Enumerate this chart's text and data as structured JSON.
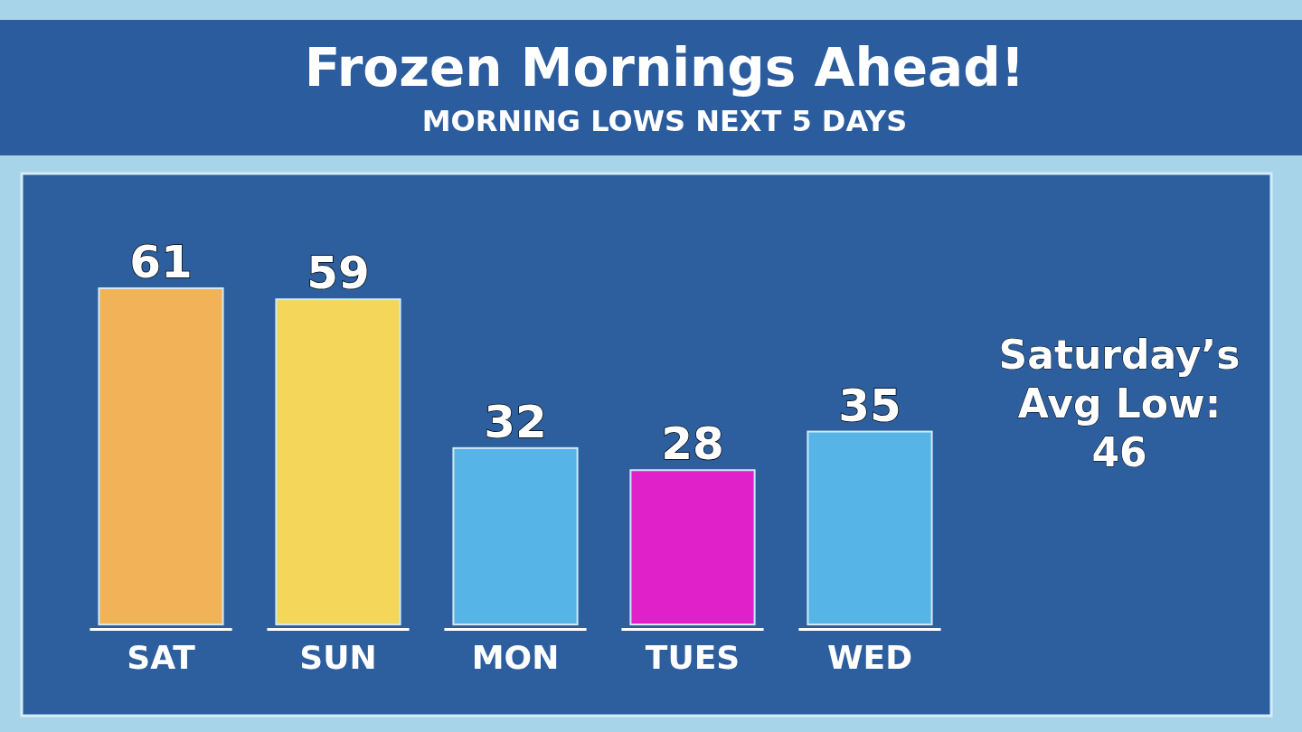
{
  "chart_data": {
    "type": "bar",
    "title": "Frozen Mornings Ahead!",
    "subtitle": "MORNING LOWS NEXT 5 DAYS",
    "categories": [
      "SAT",
      "SUN",
      "MON",
      "TUES",
      "WED"
    ],
    "values": [
      61,
      59,
      32,
      28,
      35
    ],
    "colors": [
      "#f2b257",
      "#f3d65a",
      "#56b4e6",
      "#e020c8",
      "#56b4e6"
    ],
    "relative": false,
    "data_labels": true,
    "annotations": [
      "Saturday’s Avg Low: 46"
    ]
  }
}
